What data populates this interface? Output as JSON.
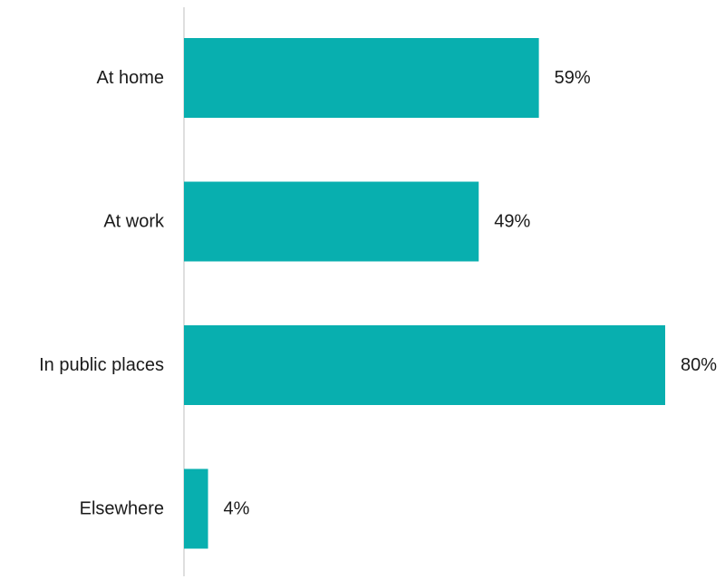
{
  "chart_data": {
    "type": "bar",
    "orientation": "horizontal",
    "categories": [
      "At home",
      "At work",
      "In public places",
      "Elsewhere"
    ],
    "values": [
      59,
      49,
      80,
      4
    ],
    "value_labels": [
      "59%",
      "49%",
      "80%",
      "4%"
    ],
    "unit": "%",
    "title": "",
    "xlabel": "",
    "ylabel": "",
    "xlim": [
      0,
      100
    ],
    "grid": false,
    "legend": "none",
    "bar_color": "#08AFAF",
    "axis_color": "#BFBFBF"
  }
}
